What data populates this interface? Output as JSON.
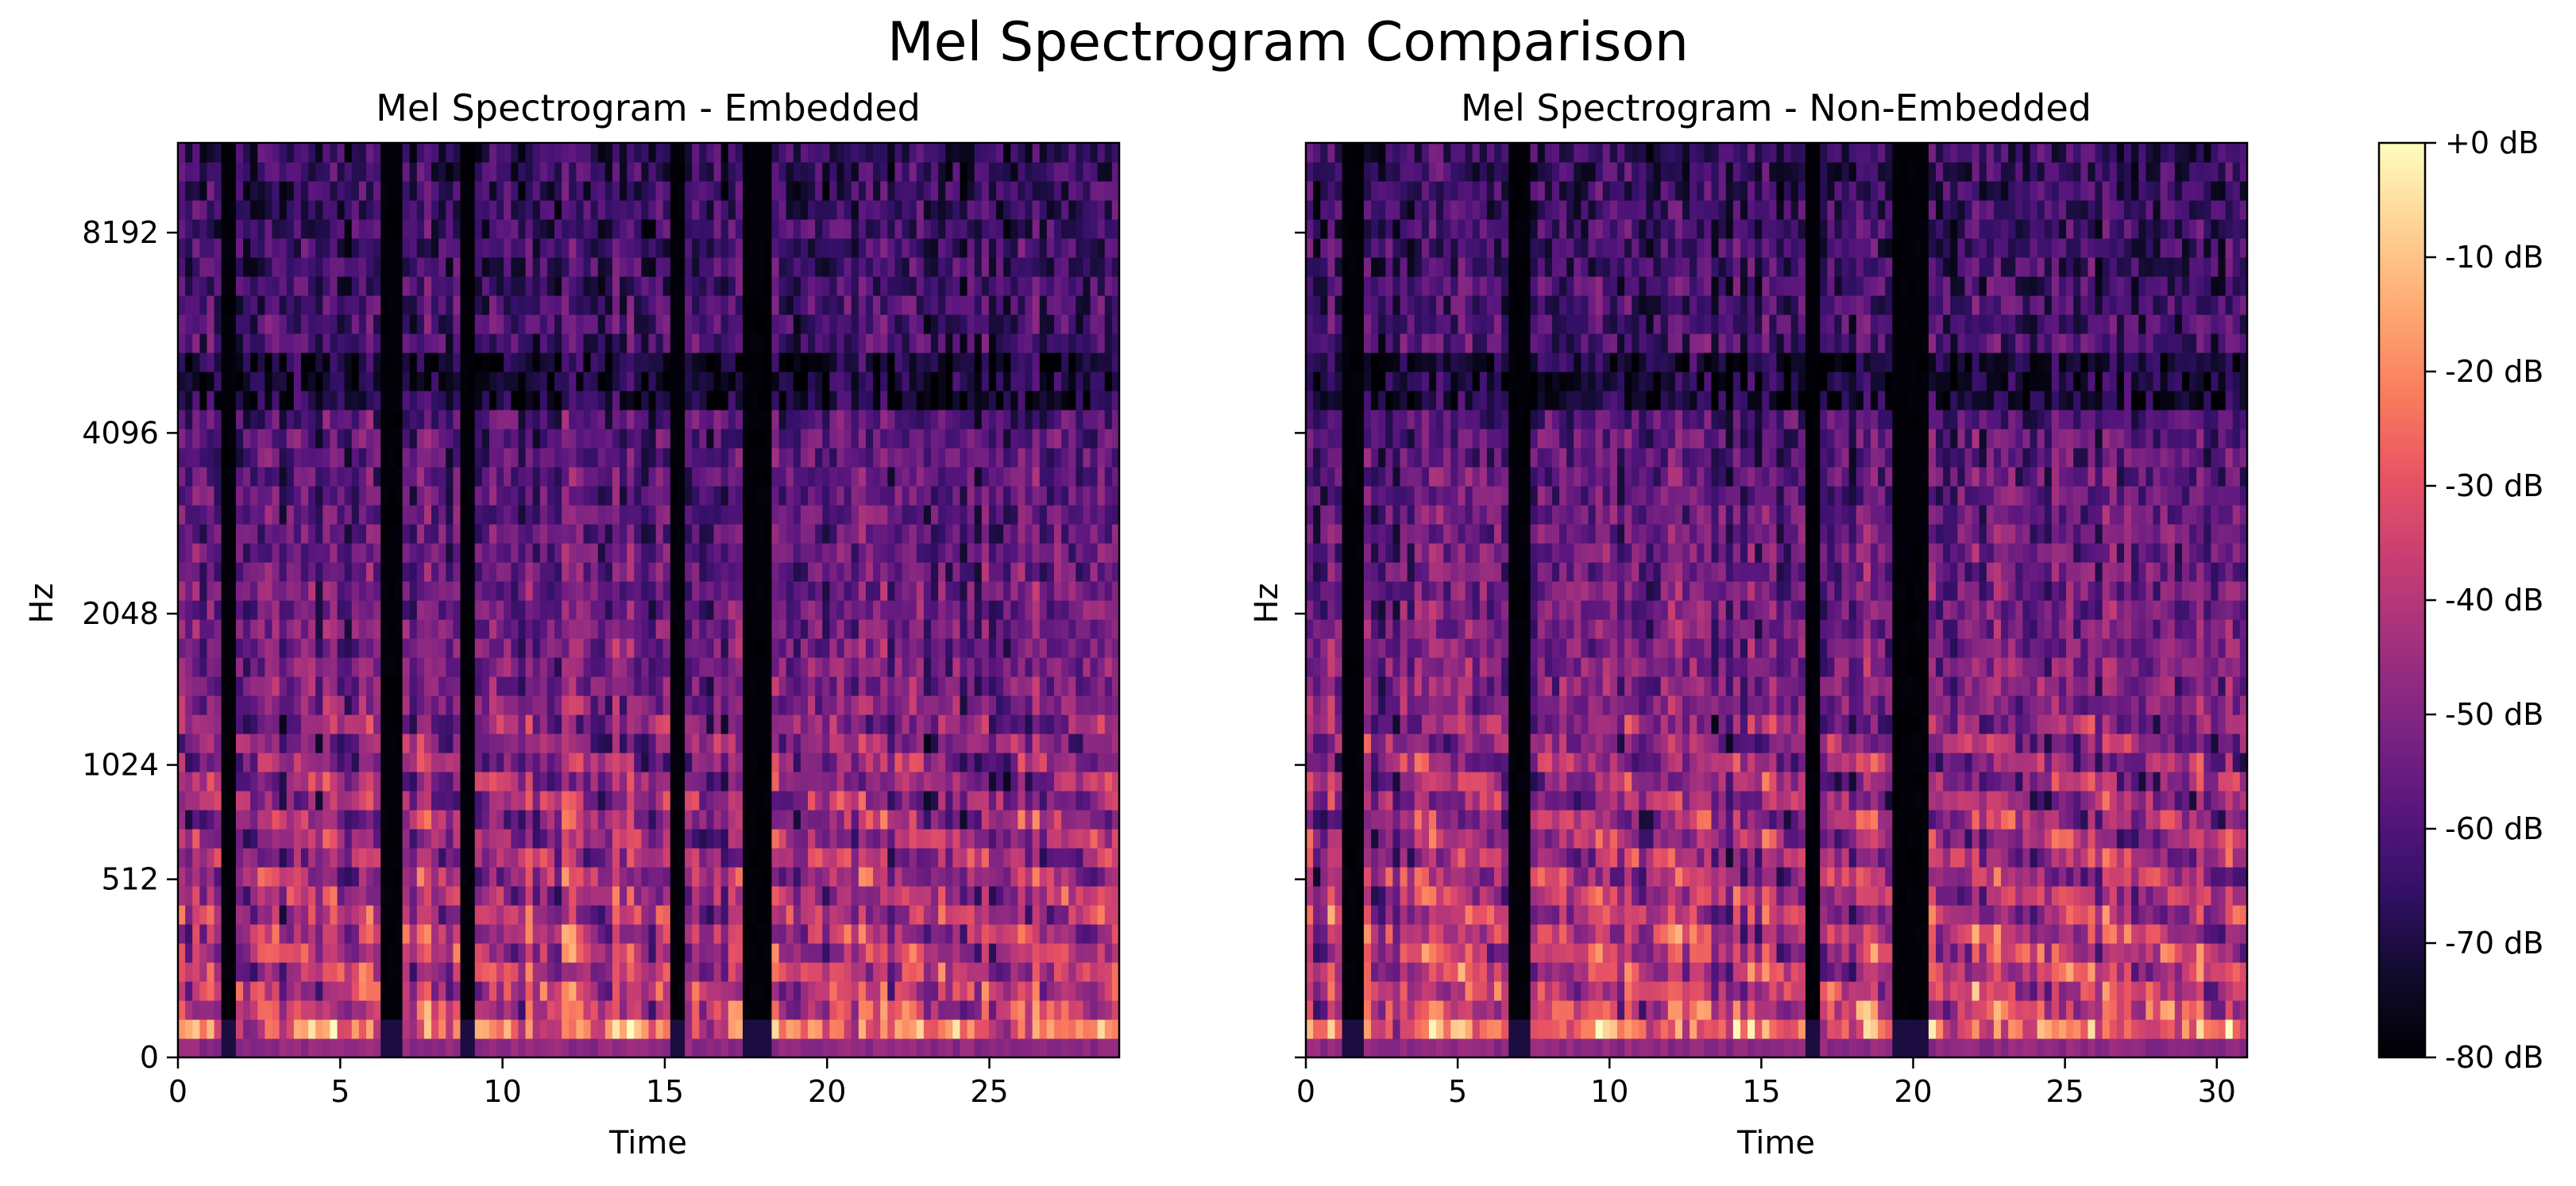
{
  "figure": {
    "title": "Mel Spectrogram Comparison"
  },
  "chart_data": [
    {
      "type": "heatmap",
      "title": "Mel Spectrogram - Embedded",
      "xlabel": "Time",
      "ylabel": "Hz",
      "xlim": [
        0,
        29
      ],
      "x_ticks": [
        0,
        5,
        10,
        15,
        20,
        25
      ],
      "y_ticks": [
        "0",
        "512",
        "1024",
        "2048",
        "4096",
        "8192"
      ],
      "y_scale": "mel",
      "colormap": "magma",
      "value_range_db": [
        -80,
        0
      ],
      "silent_segments": [
        [
          1.3,
          1.8
        ],
        [
          6.2,
          6.9
        ],
        [
          8.8,
          9.2
        ],
        [
          15.2,
          15.7
        ],
        [
          17.5,
          18.2
        ]
      ]
    },
    {
      "type": "heatmap",
      "title": "Mel Spectrogram - Non-Embedded",
      "xlabel": "Time",
      "ylabel": "Hz",
      "xlim": [
        0,
        31
      ],
      "x_ticks": [
        0,
        5,
        10,
        15,
        20,
        25,
        30
      ],
      "y_ticks": [
        "0",
        "512",
        "1024",
        "2048",
        "4096",
        "8192"
      ],
      "y_scale": "mel",
      "colormap": "magma",
      "value_range_db": [
        -80,
        0
      ],
      "silent_segments": [
        [
          1.2,
          2.0
        ],
        [
          6.6,
          7.4
        ],
        [
          16.5,
          17.0
        ],
        [
          19.2,
          20.4
        ]
      ]
    }
  ],
  "colorbar": {
    "ticks": [
      "+0 dB",
      "-10 dB",
      "-20 dB",
      "-30 dB",
      "-40 dB",
      "-50 dB",
      "-60 dB",
      "-70 dB",
      "-80 dB"
    ],
    "colors": [
      "#fcfdbf",
      "#fed395",
      "#fea973",
      "#fa7d5e",
      "#e95462",
      "#c83e73",
      "#a3307e",
      "#7e2482",
      "#5a167e",
      "#331067",
      "#110b2d",
      "#000004"
    ]
  }
}
